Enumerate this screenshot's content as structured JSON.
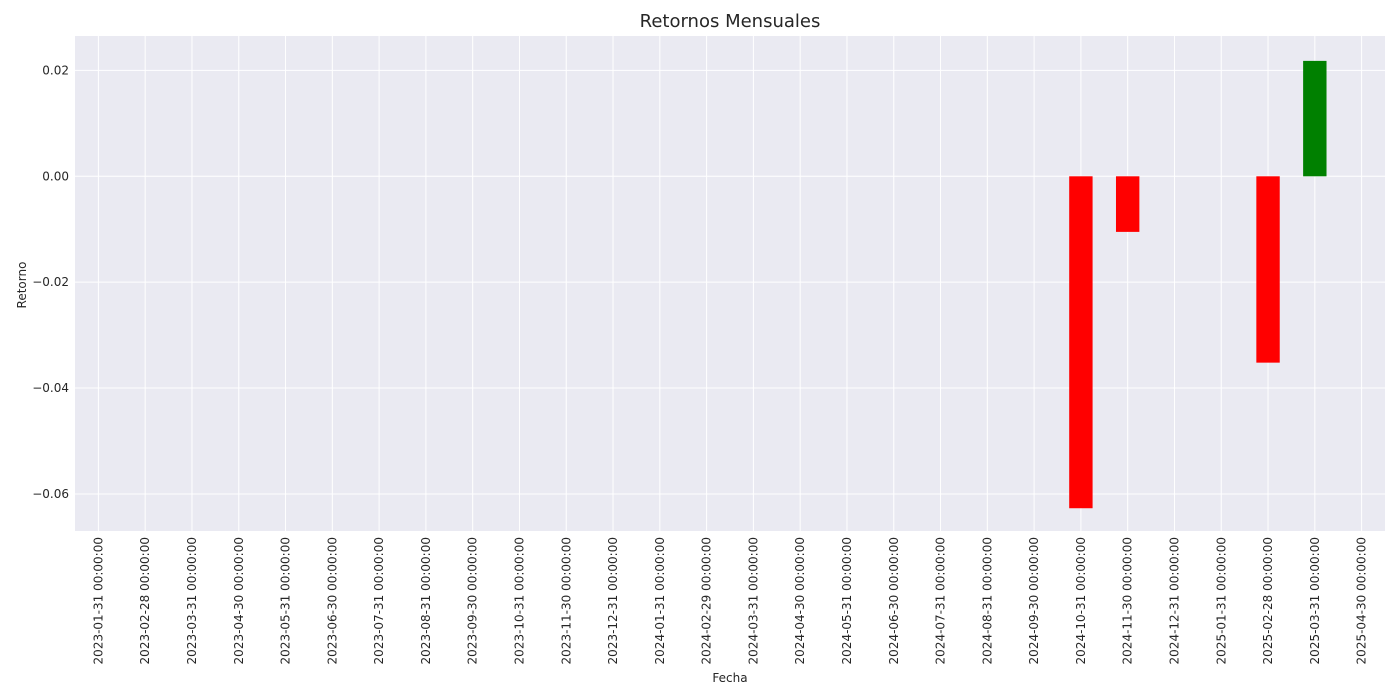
{
  "chart_data": {
    "type": "bar",
    "title": "Retornos Mensuales",
    "xlabel": "Fecha",
    "ylabel": "Retorno",
    "ylim": [
      -0.067,
      0.0265
    ],
    "yticks": [
      0.02,
      0.0,
      -0.02,
      -0.04,
      -0.06
    ],
    "ytick_labels": [
      "0.02",
      "0.00",
      "−0.02",
      "−0.04",
      "−0.06"
    ],
    "grid": true,
    "positive_color": "#008000",
    "negative_color": "#ff0000",
    "background_color": "#eaeaf2",
    "categories": [
      "2023-01-31 00:00:00",
      "2023-02-28 00:00:00",
      "2023-03-31 00:00:00",
      "2023-04-30 00:00:00",
      "2023-05-31 00:00:00",
      "2023-06-30 00:00:00",
      "2023-07-31 00:00:00",
      "2023-08-31 00:00:00",
      "2023-09-30 00:00:00",
      "2023-10-31 00:00:00",
      "2023-11-30 00:00:00",
      "2023-12-31 00:00:00",
      "2024-01-31 00:00:00",
      "2024-02-29 00:00:00",
      "2024-03-31 00:00:00",
      "2024-04-30 00:00:00",
      "2024-05-31 00:00:00",
      "2024-06-30 00:00:00",
      "2024-07-31 00:00:00",
      "2024-08-31 00:00:00",
      "2024-09-30 00:00:00",
      "2024-10-31 00:00:00",
      "2024-11-30 00:00:00",
      "2024-12-31 00:00:00",
      "2025-01-31 00:00:00",
      "2025-02-28 00:00:00",
      "2025-03-31 00:00:00",
      "2025-04-30 00:00:00"
    ],
    "values": [
      null,
      null,
      null,
      null,
      null,
      null,
      null,
      null,
      null,
      null,
      null,
      null,
      null,
      null,
      null,
      null,
      null,
      null,
      null,
      null,
      null,
      -0.0627,
      -0.0105,
      null,
      null,
      -0.0352,
      0.0218,
      null
    ]
  }
}
